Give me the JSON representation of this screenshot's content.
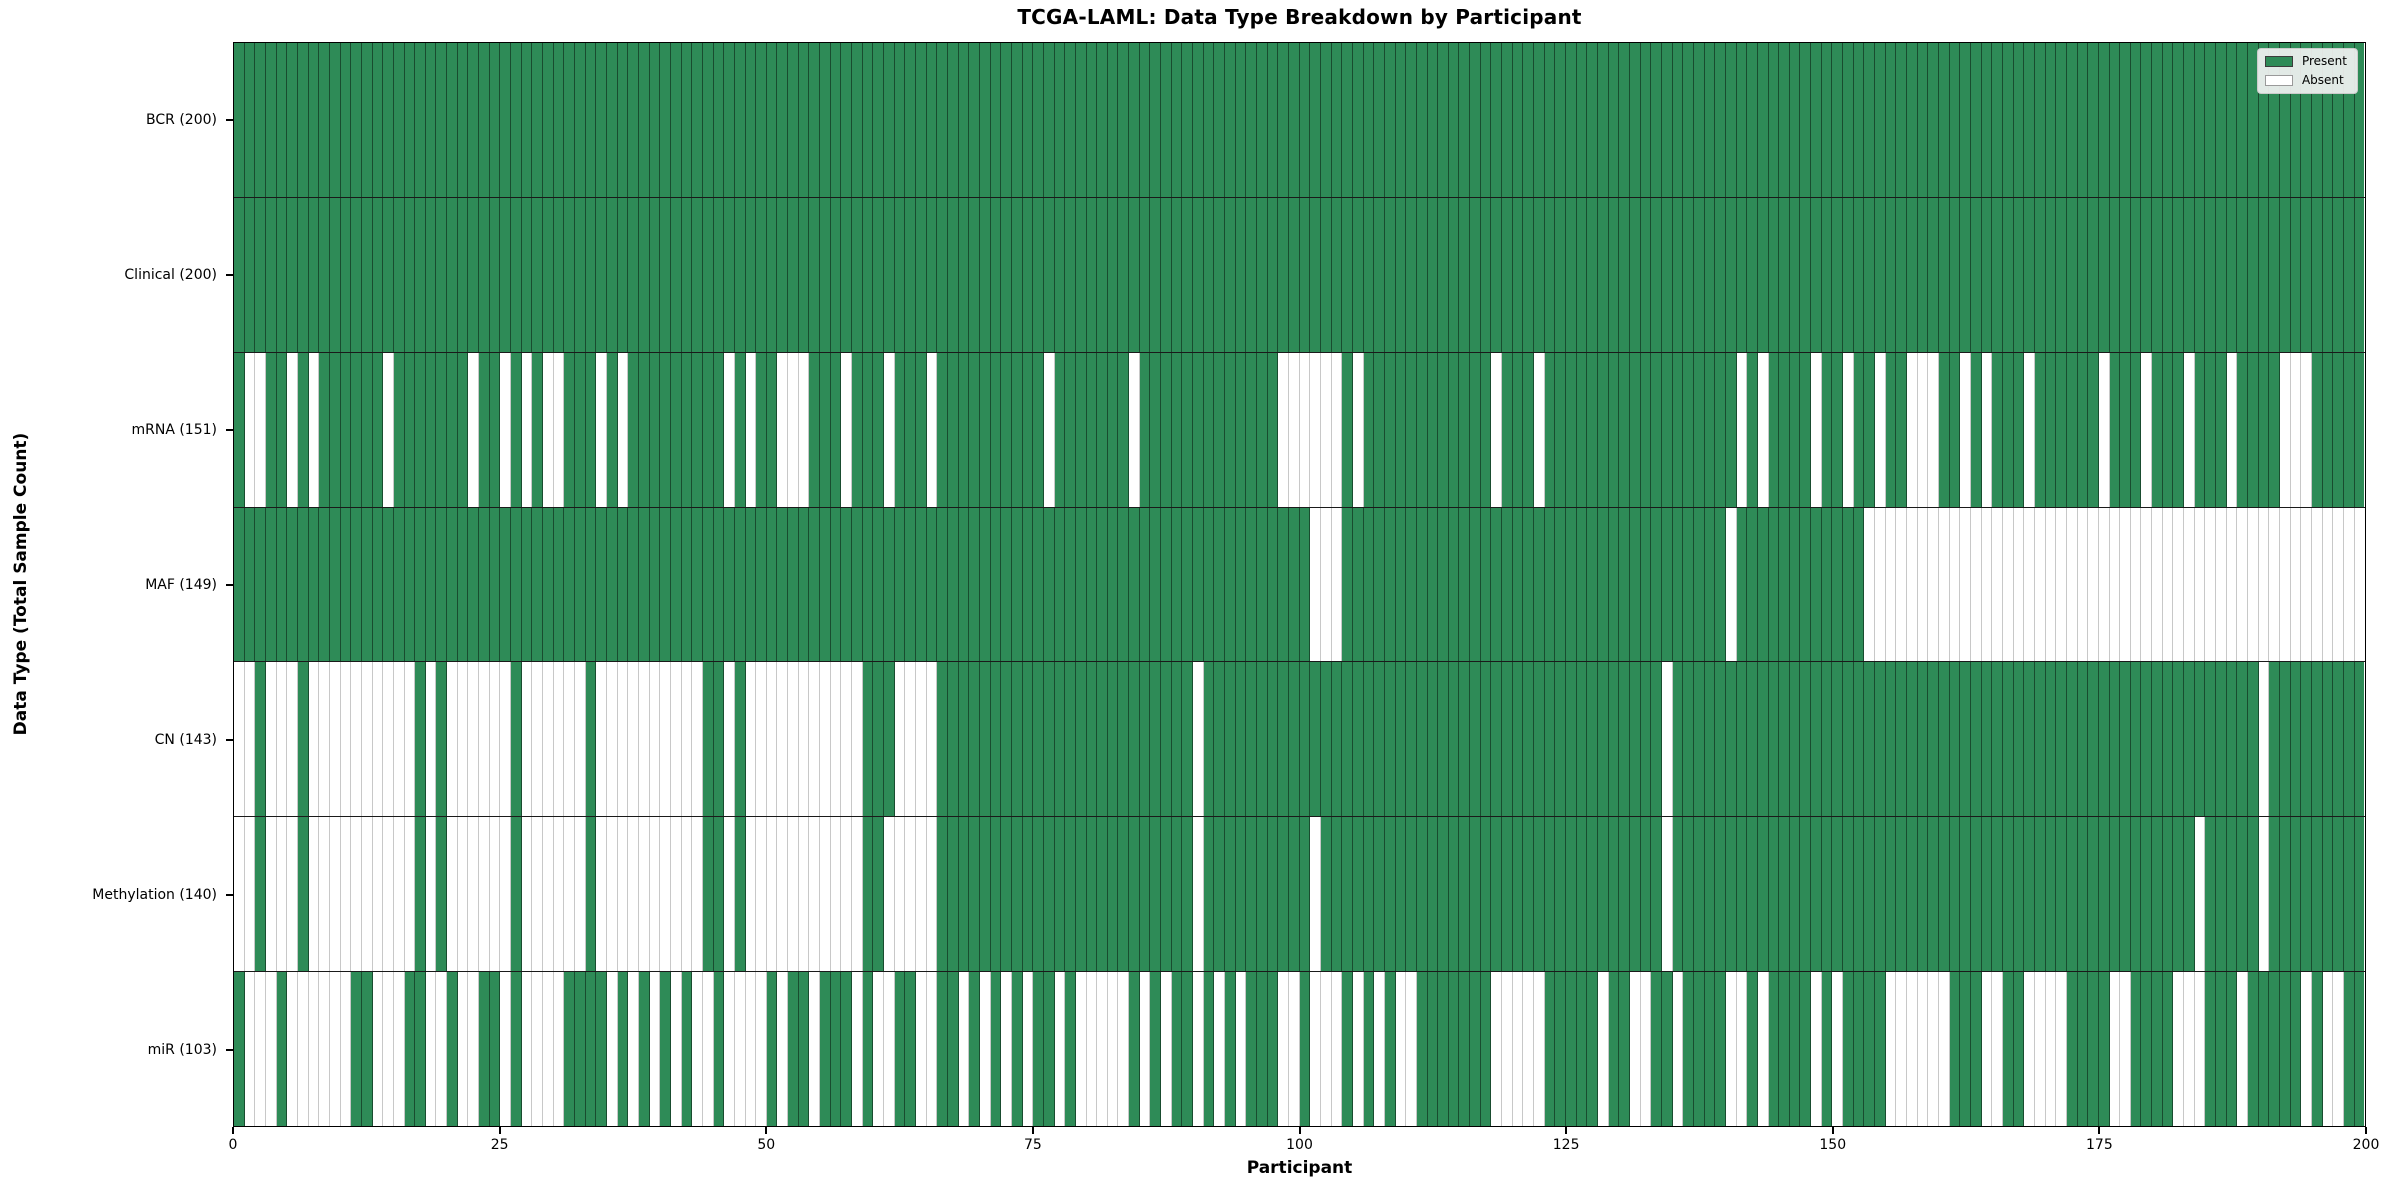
{
  "title": "TCGA-LAML: Data Type Breakdown by Participant",
  "xlabel": "Participant",
  "ylabel": "Data Type (Total Sample Count)",
  "legend": {
    "present_label": "Present",
    "absent_label": "Absent"
  },
  "colors": {
    "present": "#2e8b57",
    "absent": "#ffffff",
    "present_edge": "rgba(0,0,0,0.45)",
    "absent_edge": "#c8c8c8",
    "row_divider": "#1a1a1a",
    "spine": "#000000",
    "legend_bg": "rgba(242,242,242,0.92)",
    "legend_border": "#cccccc"
  },
  "x_ticks": [
    0,
    25,
    50,
    75,
    100,
    125,
    150,
    175,
    200
  ],
  "n_participants": 200,
  "chart_data": {
    "type": "heatmap",
    "x_axis": "participant index 0-199",
    "cell_values": "present=1 / absent=0 encoded as absent index lists per row",
    "rows": [
      {
        "label": "BCR (200)",
        "total_present": 200,
        "absent": []
      },
      {
        "label": "Clinical (200)",
        "total_present": 200,
        "absent": []
      },
      {
        "label": "mRNA (151)",
        "total_present": 151,
        "absent": [
          1,
          2,
          5,
          7,
          14,
          22,
          25,
          27,
          29,
          30,
          34,
          36,
          46,
          48,
          51,
          52,
          53,
          57,
          61,
          65,
          76,
          84,
          98,
          99,
          100,
          101,
          102,
          103,
          105,
          118,
          122,
          141,
          143,
          148,
          151,
          154,
          157,
          158,
          159,
          162,
          164,
          168,
          175,
          179,
          183,
          187,
          192,
          193,
          194
        ]
      },
      {
        "label": "MAF (149)",
        "total_present": 149,
        "absent": [
          101,
          102,
          103,
          140,
          153,
          154,
          155,
          156,
          157,
          158,
          159,
          160,
          161,
          162,
          163,
          164,
          165,
          166,
          167,
          168,
          169,
          170,
          171,
          172,
          173,
          174,
          175,
          176,
          177,
          178,
          179,
          180,
          181,
          182,
          183,
          184,
          185,
          186,
          187,
          188,
          189,
          190,
          191,
          192,
          193,
          194,
          195,
          196,
          197,
          198,
          199
        ]
      },
      {
        "label": "CN (143)",
        "total_present": 143,
        "absent": [
          0,
          1,
          3,
          4,
          5,
          7,
          8,
          9,
          10,
          11,
          12,
          13,
          14,
          15,
          16,
          18,
          20,
          21,
          22,
          23,
          24,
          25,
          27,
          28,
          29,
          30,
          31,
          32,
          34,
          35,
          36,
          37,
          38,
          39,
          40,
          41,
          42,
          43,
          46,
          48,
          49,
          50,
          51,
          52,
          53,
          54,
          55,
          56,
          57,
          58,
          62,
          63,
          64,
          65,
          90,
          134,
          190
        ]
      },
      {
        "label": "Methylation (140)",
        "total_present": 140,
        "absent": [
          0,
          1,
          3,
          4,
          5,
          7,
          8,
          9,
          10,
          11,
          12,
          13,
          14,
          15,
          16,
          18,
          20,
          21,
          22,
          23,
          24,
          25,
          27,
          28,
          29,
          30,
          31,
          32,
          34,
          35,
          36,
          37,
          38,
          39,
          40,
          41,
          42,
          43,
          46,
          48,
          49,
          50,
          51,
          52,
          53,
          54,
          55,
          56,
          57,
          58,
          61,
          62,
          63,
          64,
          65,
          90,
          101,
          134,
          184,
          190
        ]
      },
      {
        "label": "miR (103)",
        "total_present": 103,
        "absent": [
          1,
          2,
          3,
          5,
          6,
          7,
          8,
          9,
          10,
          13,
          14,
          15,
          18,
          19,
          21,
          22,
          25,
          27,
          28,
          29,
          30,
          35,
          37,
          39,
          41,
          43,
          44,
          46,
          47,
          48,
          49,
          51,
          54,
          58,
          60,
          61,
          64,
          65,
          68,
          70,
          72,
          74,
          77,
          79,
          80,
          81,
          82,
          83,
          85,
          87,
          90,
          92,
          94,
          98,
          99,
          101,
          102,
          103,
          105,
          107,
          109,
          110,
          118,
          119,
          120,
          121,
          122,
          128,
          131,
          132,
          135,
          140,
          141,
          143,
          148,
          150,
          155,
          156,
          157,
          158,
          159,
          160,
          164,
          165,
          168,
          169,
          170,
          171,
          176,
          177,
          182,
          183,
          184,
          188,
          194,
          196,
          197
        ]
      }
    ]
  }
}
